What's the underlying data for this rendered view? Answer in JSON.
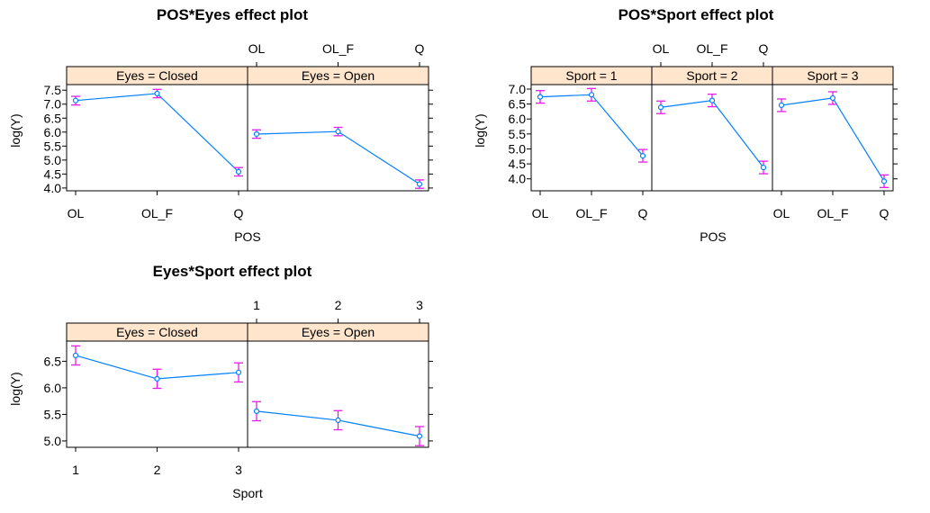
{
  "chart_data": [
    {
      "type": "line",
      "title": "POS*Eyes effect plot",
      "xlabel": "POS",
      "ylabel": "log(Y)",
      "categories": [
        "OL",
        "OL_F",
        "Q"
      ],
      "yticks": [
        "4.0",
        "4.5",
        "5.0",
        "5.5",
        "6.0",
        "6.5",
        "7.0",
        "7.5"
      ],
      "ylim": [
        3.9,
        7.7
      ],
      "panels": [
        {
          "strip": "Eyes = Closed",
          "values": [
            7.13,
            7.38,
            4.58
          ],
          "lower": [
            6.97,
            7.23,
            4.43
          ],
          "upper": [
            7.28,
            7.53,
            4.73
          ]
        },
        {
          "strip": "Eyes = Open",
          "values": [
            5.93,
            6.02,
            4.14
          ],
          "lower": [
            5.78,
            5.87,
            3.99
          ],
          "upper": [
            6.08,
            6.17,
            4.29
          ]
        }
      ]
    },
    {
      "type": "line",
      "title": "POS*Sport effect plot",
      "xlabel": "POS",
      "ylabel": "log(Y)",
      "categories": [
        "OL",
        "OL_F",
        "Q"
      ],
      "yticks": [
        "4.0",
        "4.5",
        "5.0",
        "5.5",
        "6.0",
        "6.5",
        "7.0"
      ],
      "ylim": [
        3.6,
        7.15
      ],
      "panels": [
        {
          "strip": "Sport = 1",
          "values": [
            6.74,
            6.81,
            4.77
          ],
          "lower": [
            6.53,
            6.6,
            4.56
          ],
          "upper": [
            6.95,
            7.02,
            4.98
          ]
        },
        {
          "strip": "Sport = 2",
          "values": [
            6.39,
            6.62,
            4.38
          ],
          "lower": [
            6.18,
            6.41,
            4.17
          ],
          "upper": [
            6.6,
            6.83,
            4.59
          ]
        },
        {
          "strip": "Sport = 3",
          "values": [
            6.46,
            6.7,
            3.92
          ],
          "lower": [
            6.25,
            6.49,
            3.71
          ],
          "upper": [
            6.67,
            6.91,
            4.13
          ]
        }
      ]
    },
    {
      "type": "line",
      "title": "Eyes*Sport effect plot",
      "xlabel": "Sport",
      "ylabel": "log(Y)",
      "categories": [
        "1",
        "2",
        "3"
      ],
      "yticks": [
        "5.0",
        "5.5",
        "6.0",
        "6.5"
      ],
      "ylim": [
        4.88,
        6.88
      ],
      "panels": [
        {
          "strip": "Eyes = Closed",
          "values": [
            6.61,
            6.17,
            6.29
          ],
          "lower": [
            6.43,
            5.99,
            6.11
          ],
          "upper": [
            6.79,
            6.35,
            6.47
          ]
        },
        {
          "strip": "Eyes = Open",
          "values": [
            5.56,
            5.39,
            5.09
          ],
          "lower": [
            5.38,
            5.21,
            4.91
          ],
          "upper": [
            5.74,
            5.57,
            5.27
          ]
        }
      ]
    }
  ],
  "colors": {
    "line": "#0080ff",
    "errorbar": "#e61ee6",
    "strip": "#ffe5cc",
    "axis": "#000000"
  }
}
